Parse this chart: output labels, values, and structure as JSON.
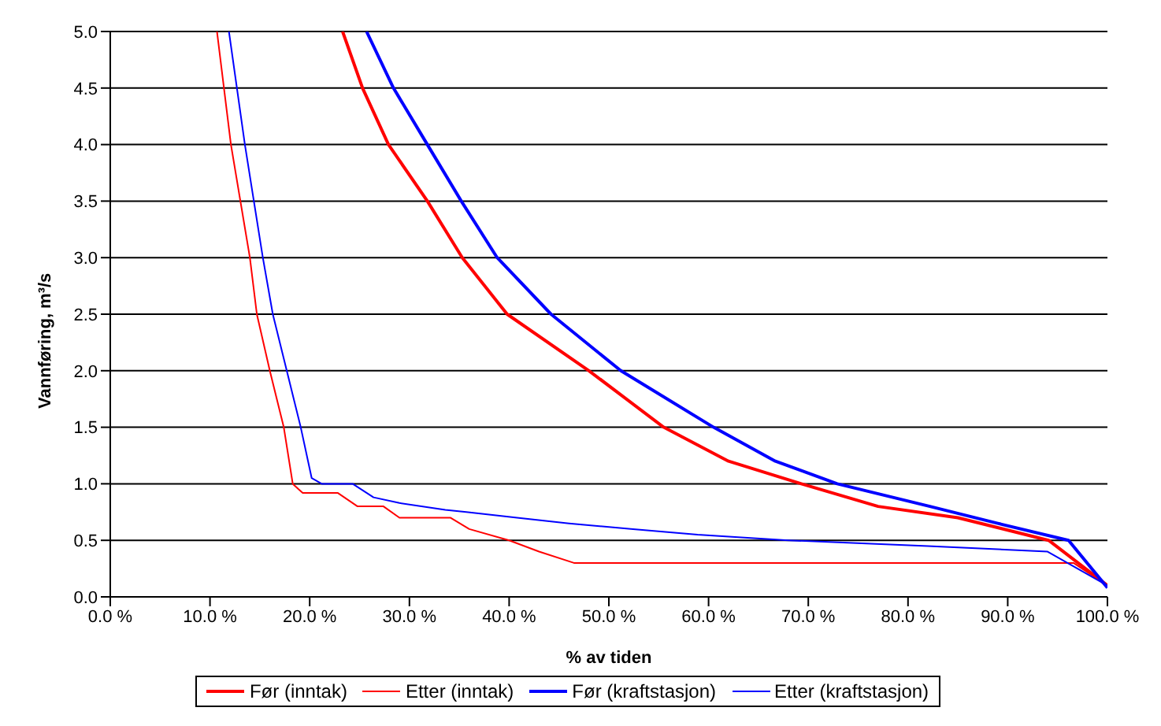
{
  "chart_data": {
    "type": "line",
    "xlabel": "% av tiden",
    "ylabel": "Vannføring, m³/s",
    "xlim": [
      0,
      100
    ],
    "ylim": [
      0,
      5
    ],
    "xticks": [
      {
        "value": 0,
        "label": "0.0 %"
      },
      {
        "value": 10,
        "label": "10.0 %"
      },
      {
        "value": 20,
        "label": "20.0 %"
      },
      {
        "value": 30,
        "label": "30.0 %"
      },
      {
        "value": 40,
        "label": "40.0 %"
      },
      {
        "value": 50,
        "label": "50.0 %"
      },
      {
        "value": 60,
        "label": "60.0 %"
      },
      {
        "value": 70,
        "label": "70.0 %"
      },
      {
        "value": 80,
        "label": "80.0 %"
      },
      {
        "value": 90,
        "label": "90.0 %"
      },
      {
        "value": 100,
        "label": "100.0 %"
      }
    ],
    "yticks": [
      {
        "value": 0,
        "label": "0.0"
      },
      {
        "value": 0.5,
        "label": "0.5"
      },
      {
        "value": 1,
        "label": "1.0"
      },
      {
        "value": 1.5,
        "label": "1.5"
      },
      {
        "value": 2,
        "label": "2.0"
      },
      {
        "value": 2.5,
        "label": "2.5"
      },
      {
        "value": 3,
        "label": "3.0"
      },
      {
        "value": 3.5,
        "label": "3.5"
      },
      {
        "value": 4,
        "label": "4.0"
      },
      {
        "value": 4.5,
        "label": "4.5"
      },
      {
        "value": 5,
        "label": "5.0"
      }
    ],
    "grid": "y",
    "legend": "bottom",
    "marker": "none",
    "line_style": "solid",
    "series": [
      {
        "name": "Før (inntak)",
        "color": "#ff0000",
        "x": [
          23.3,
          25.3,
          27.9,
          31.8,
          35.3,
          39.8,
          48,
          55.5,
          62,
          69.3,
          77,
          85,
          94.1,
          100
        ],
        "values": [
          5,
          4.5,
          4,
          3.5,
          3,
          2.5,
          2,
          1.5,
          1.2,
          1,
          0.8,
          0.7,
          0.5,
          0.1
        ]
      },
      {
        "name": "Etter (inntak)",
        "color": "#ff0000",
        "x": [
          10.7,
          12.1,
          14,
          14.7,
          16,
          17.4,
          18.3,
          18.9,
          19.3,
          22.8,
          24.8,
          27.4,
          29,
          34.1,
          36,
          40,
          43,
          46.5,
          96.6,
          100
        ],
        "values": [
          5,
          4,
          3,
          2.5,
          2,
          1.5,
          1,
          0.95,
          0.92,
          0.92,
          0.8,
          0.8,
          0.7,
          0.7,
          0.6,
          0.5,
          0.4,
          0.3,
          0.3,
          0.1
        ]
      },
      {
        "name": "Før (kraftstasjon)",
        "color": "#0000ff",
        "x": [
          25.7,
          28.4,
          31.8,
          35.2,
          38.8,
          44.2,
          51.2,
          60.5,
          66.7,
          72.9,
          82.2,
          89,
          96.1,
          100
        ],
        "values": [
          5,
          4.5,
          4,
          3.5,
          3,
          2.5,
          2,
          1.5,
          1.2,
          1,
          0.8,
          0.65,
          0.5,
          0.08
        ]
      },
      {
        "name": "Etter (kraftstasjon)",
        "color": "#0000ff",
        "x": [
          11.9,
          13.5,
          15.3,
          16.3,
          17.7,
          19.1,
          20.2,
          21.2,
          24.3,
          26.4,
          29,
          33.6,
          35.7,
          40.8,
          46,
          52.2,
          58.9,
          68,
          82,
          94,
          100
        ],
        "values": [
          5,
          4,
          3,
          2.5,
          2,
          1.5,
          1.05,
          1,
          1,
          0.88,
          0.83,
          0.77,
          0.75,
          0.7,
          0.65,
          0.6,
          0.55,
          0.5,
          0.45,
          0.4,
          0.1
        ]
      }
    ]
  }
}
